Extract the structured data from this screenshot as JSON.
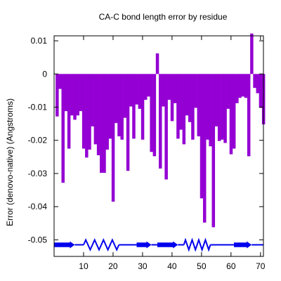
{
  "chart_data": {
    "type": "bar",
    "title": "CA-C bond length error by residue",
    "xlabel": "",
    "ylabel": "Error (denovo-native) (Angstroms)",
    "xlim": [
      0,
      71
    ],
    "ylim": [
      -0.055,
      0.0115
    ],
    "xticks": [
      10,
      20,
      30,
      40,
      50,
      60,
      70
    ],
    "xtick_labels": [
      "10",
      "20",
      "30",
      "40",
      "50",
      "60",
      "70"
    ],
    "yticks": [
      0.01,
      0,
      -0.01,
      -0.02,
      -0.03,
      -0.04,
      -0.05
    ],
    "ytick_labels": [
      "0.01",
      "0",
      "-0.01",
      "-0.02",
      "-0.03",
      "-0.04",
      "-0.05"
    ],
    "grid": false,
    "legend": "none",
    "bar_color": "#9400d3",
    "x": [
      1,
      2,
      3,
      4,
      5,
      6,
      7,
      8,
      9,
      10,
      11,
      12,
      13,
      14,
      15,
      16,
      17,
      18,
      19,
      20,
      21,
      22,
      23,
      24,
      25,
      26,
      27,
      28,
      29,
      30,
      31,
      32,
      33,
      34,
      35,
      36,
      37,
      38,
      39,
      40,
      41,
      42,
      43,
      44,
      45,
      46,
      47,
      48,
      49,
      50,
      51,
      52,
      53,
      54,
      55,
      56,
      57,
      58,
      59,
      60,
      61,
      62,
      63,
      64,
      65,
      66,
      67,
      68,
      69,
      70,
      71
    ],
    "values": [
      -0.0128,
      -0.0045,
      -0.0328,
      -0.0112,
      -0.0225,
      -0.0125,
      -0.0138,
      -0.0125,
      -0.0112,
      -0.0225,
      -0.0252,
      -0.0228,
      -0.0158,
      -0.0212,
      -0.0245,
      -0.0298,
      -0.0298,
      -0.0228,
      -0.0195,
      -0.0385,
      -0.0148,
      -0.0188,
      -0.0198,
      -0.0132,
      -0.0292,
      -0.0098,
      -0.0195,
      -0.0092,
      -0.0105,
      -0.0198,
      -0.0078,
      -0.0068,
      -0.0235,
      -0.0248,
      0.0062,
      -0.0285,
      -0.0098,
      -0.0318,
      -0.0078,
      -0.0142,
      -0.0088,
      -0.0195,
      -0.0168,
      -0.0212,
      -0.0125,
      -0.0145,
      -0.0198,
      -0.0102,
      -0.0188,
      -0.0375,
      -0.0448,
      -0.0198,
      -0.0218,
      -0.0462,
      -0.0158,
      -0.0202,
      -0.0198,
      -0.0208,
      -0.0105,
      -0.0242,
      -0.0225,
      -0.0088,
      -0.0072,
      -0.0068,
      -0.0072,
      -0.0248,
      0.0122,
      -0.0042,
      -0.0058,
      -0.0102,
      -0.0152
    ],
    "secondary_structure": {
      "y": -0.0515,
      "color": "#0000ee",
      "segments": [
        {
          "type": "strand",
          "start": 0,
          "end": 7
        },
        {
          "type": "coil",
          "start": 7,
          "end": 10
        },
        {
          "type": "helix",
          "start": 10,
          "end": 22
        },
        {
          "type": "coil",
          "start": 22,
          "end": 28
        },
        {
          "type": "strand",
          "start": 28,
          "end": 33
        },
        {
          "type": "coil",
          "start": 33,
          "end": 35
        },
        {
          "type": "strand",
          "start": 35,
          "end": 42
        },
        {
          "type": "coil",
          "start": 42,
          "end": 44
        },
        {
          "type": "helix",
          "start": 44,
          "end": 53
        },
        {
          "type": "coil",
          "start": 53,
          "end": 61
        },
        {
          "type": "strand",
          "start": 61,
          "end": 67
        },
        {
          "type": "coil",
          "start": 67,
          "end": 71
        }
      ]
    }
  }
}
